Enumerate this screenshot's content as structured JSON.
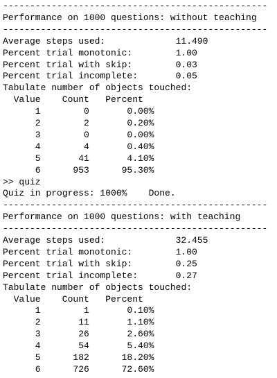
{
  "rule": "-------------------------------------------------",
  "sections": [
    {
      "title": "Performance on 1000 questions: without teaching",
      "stats": [
        {
          "label": "Average steps used:",
          "value": "11.490"
        },
        {
          "label": "Percent trial monotonic:",
          "value": "1.00"
        },
        {
          "label": "Percent trial with skip:",
          "value": "0.03"
        },
        {
          "label": "Percent trial incomplete:",
          "value": "0.05"
        }
      ],
      "table_title": "Tabulate number of objects touched:",
      "columns": [
        "Value",
        "Count",
        "Percent"
      ],
      "rows": [
        [
          1,
          0,
          "0.00%"
        ],
        [
          2,
          2,
          "0.20%"
        ],
        [
          3,
          0,
          "0.00%"
        ],
        [
          4,
          4,
          "0.40%"
        ],
        [
          5,
          41,
          "4.10%"
        ],
        [
          6,
          953,
          "95.30%"
        ]
      ],
      "after": [
        ">> quiz",
        "Quiz in progress: 1000%    Done."
      ]
    },
    {
      "title": "Performance on 1000 questions: with teaching",
      "stats": [
        {
          "label": "Average steps used:",
          "value": "32.455"
        },
        {
          "label": "Percent trial monotonic:",
          "value": "1.00"
        },
        {
          "label": "Percent trial with skip:",
          "value": "0.25"
        },
        {
          "label": "Percent trial incomplete:",
          "value": "0.27"
        }
      ],
      "table_title": "Tabulate number of objects touched:",
      "columns": [
        "Value",
        "Count",
        "Percent"
      ],
      "rows": [
        [
          1,
          1,
          "0.10%"
        ],
        [
          2,
          11,
          "1.10%"
        ],
        [
          3,
          26,
          "2.60%"
        ],
        [
          4,
          54,
          "5.40%"
        ],
        [
          5,
          182,
          "18.20%"
        ],
        [
          6,
          726,
          "72.60%"
        ]
      ]
    }
  ]
}
